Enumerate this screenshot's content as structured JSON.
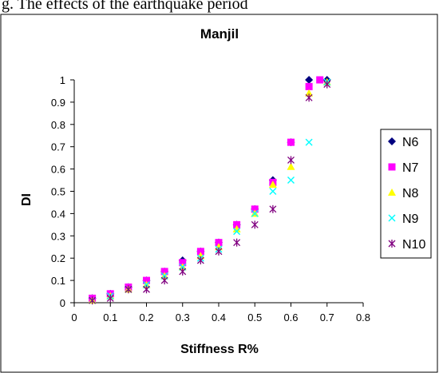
{
  "top_text": "g. The effects of the earthquake period",
  "colors": {
    "N6": "#000080",
    "N7": "#ff00ff",
    "N8": "#ffff00",
    "N9": "#00ffff",
    "N10": "#800080"
  },
  "chart_data": {
    "type": "scatter",
    "title": "Manjil",
    "xlabel": "Stiffness R%",
    "ylabel": "DI",
    "xlim": [
      0,
      0.8
    ],
    "ylim": [
      0,
      1
    ],
    "xticks": [
      "0",
      "0.1",
      "0.2",
      "0.3",
      "0.4",
      "0.5",
      "0.6",
      "0.7",
      "0.8"
    ],
    "yticks": [
      "0",
      "0.1",
      "0.2",
      "0.3",
      "0.4",
      "0.5",
      "0.6",
      "0.7",
      "0.8",
      "0.9",
      "1"
    ],
    "grid": false,
    "legend_position": "right",
    "series": [
      {
        "name": "N6",
        "marker": "diamond",
        "x": [
          0.05,
          0.1,
          0.15,
          0.2,
          0.25,
          0.3,
          0.35,
          0.4,
          0.45,
          0.5,
          0.55,
          0.6,
          0.65,
          0.7
        ],
        "y": [
          0.02,
          0.04,
          0.07,
          0.1,
          0.14,
          0.19,
          0.23,
          0.27,
          0.35,
          0.42,
          0.55,
          0.72,
          1.0,
          1.0
        ]
      },
      {
        "name": "N7",
        "marker": "square",
        "x": [
          0.05,
          0.1,
          0.15,
          0.2,
          0.25,
          0.3,
          0.35,
          0.4,
          0.45,
          0.5,
          0.55,
          0.6,
          0.65,
          0.68
        ],
        "y": [
          0.02,
          0.04,
          0.07,
          0.1,
          0.14,
          0.18,
          0.23,
          0.27,
          0.35,
          0.42,
          0.54,
          0.72,
          0.97,
          1.0
        ]
      },
      {
        "name": "N8",
        "marker": "triangle",
        "x": [
          0.05,
          0.1,
          0.15,
          0.2,
          0.25,
          0.3,
          0.35,
          0.4,
          0.45,
          0.5,
          0.55,
          0.6,
          0.65,
          0.7
        ],
        "y": [
          0.01,
          0.03,
          0.06,
          0.08,
          0.12,
          0.16,
          0.21,
          0.25,
          0.33,
          0.4,
          0.53,
          0.61,
          0.94,
          0.99
        ]
      },
      {
        "name": "N9",
        "marker": "x",
        "x": [
          0.05,
          0.1,
          0.15,
          0.2,
          0.25,
          0.3,
          0.35,
          0.4,
          0.45,
          0.5,
          0.55,
          0.6,
          0.65,
          0.7
        ],
        "y": [
          0.01,
          0.03,
          0.06,
          0.08,
          0.12,
          0.16,
          0.2,
          0.24,
          0.32,
          0.4,
          0.5,
          0.55,
          0.72,
          0.99
        ]
      },
      {
        "name": "N10",
        "marker": "asterisk",
        "x": [
          0.05,
          0.1,
          0.15,
          0.2,
          0.25,
          0.3,
          0.35,
          0.4,
          0.45,
          0.5,
          0.55,
          0.6,
          0.65,
          0.7
        ],
        "y": [
          0.01,
          0.02,
          0.06,
          0.06,
          0.1,
          0.14,
          0.19,
          0.23,
          0.27,
          0.35,
          0.42,
          0.64,
          0.92,
          0.98
        ]
      }
    ]
  }
}
